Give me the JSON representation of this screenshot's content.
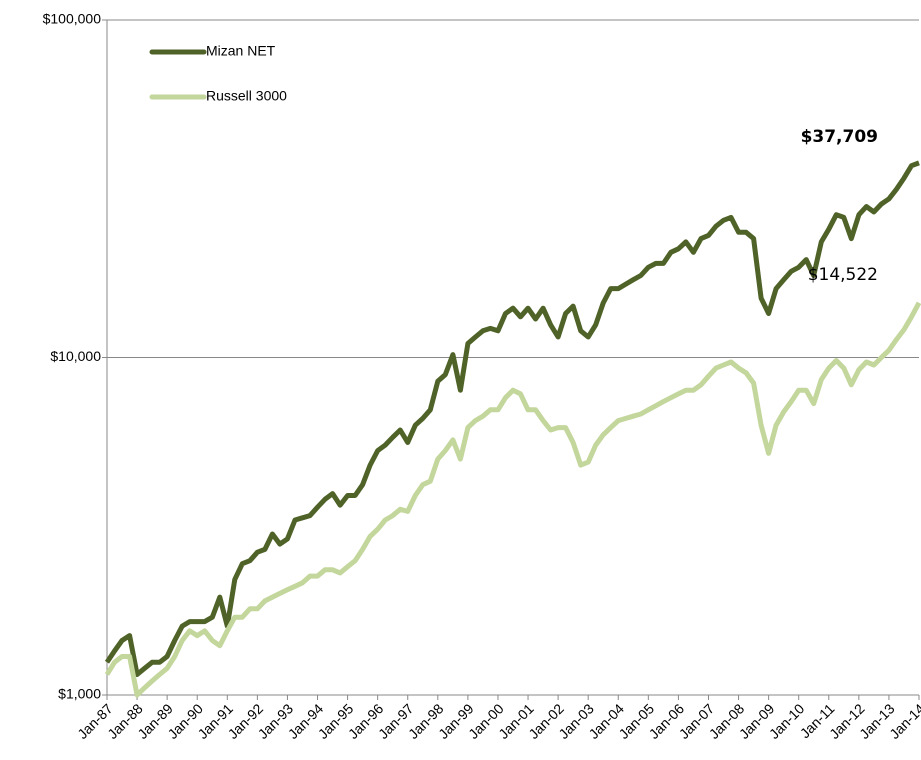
{
  "chart_data": {
    "type": "line",
    "log_scale": true,
    "categories": [
      "Jan-87",
      null,
      null,
      null,
      "Jan-88",
      null,
      null,
      null,
      "Jan-89",
      null,
      null,
      null,
      "Jan-90",
      null,
      null,
      null,
      "Jan-91",
      null,
      null,
      null,
      "Jan-92",
      null,
      null,
      null,
      "Jan-93",
      null,
      null,
      null,
      "Jan-94",
      null,
      null,
      null,
      "Jan-95",
      null,
      null,
      null,
      "Jan-96",
      null,
      null,
      null,
      "Jan-97",
      null,
      null,
      null,
      "Jan-98",
      null,
      null,
      null,
      "Jan-99",
      null,
      null,
      null,
      "Jan-00",
      null,
      null,
      null,
      "Jan-01",
      null,
      null,
      null,
      "Jan-02",
      null,
      null,
      null,
      "Jan-03",
      null,
      null,
      null,
      "Jan-04",
      null,
      null,
      null,
      "Jan-05",
      null,
      null,
      null,
      "Jan-06",
      null,
      null,
      null,
      "Jan-07",
      null,
      null,
      null,
      "Jan-08",
      null,
      null,
      null,
      "Jan-09",
      null,
      null,
      null,
      "Jan-10",
      null,
      null,
      null,
      "Jan-11",
      null,
      null,
      null,
      "Jan-12",
      null,
      null,
      null,
      "Jan-13",
      null,
      null,
      null,
      "Jan-14"
    ],
    "series": [
      {
        "name": "Mizan NET",
        "color": "#4f6228",
        "annotation": "$37,709",
        "annotation_color": "#4f6228",
        "values": [
          1250,
          1350,
          1450,
          1500,
          1150,
          1200,
          1250,
          1250,
          1300,
          1450,
          1600,
          1650,
          1650,
          1650,
          1700,
          1950,
          1600,
          2200,
          2450,
          2500,
          2650,
          2700,
          3000,
          2800,
          2900,
          3300,
          3350,
          3400,
          3600,
          3800,
          3950,
          3650,
          3900,
          3900,
          4200,
          4800,
          5300,
          5500,
          5800,
          6100,
          5600,
          6300,
          6600,
          7000,
          8500,
          8900,
          10200,
          8000,
          11000,
          11500,
          12000,
          12200,
          12000,
          13500,
          14000,
          13200,
          14000,
          13000,
          14000,
          12500,
          11500,
          13500,
          14200,
          12000,
          11500,
          12500,
          14500,
          16000,
          16000,
          16500,
          17000,
          17500,
          18500,
          19000,
          19000,
          20500,
          21000,
          22000,
          20500,
          22500,
          23000,
          24500,
          25500,
          26000,
          23500,
          23500,
          22500,
          15000,
          13500,
          16000,
          17000,
          18000,
          18500,
          19500,
          17500,
          22000,
          24000,
          26500,
          26000,
          22500,
          26500,
          28000,
          27000,
          28500,
          29500,
          31500,
          34000,
          37000,
          37709
        ]
      },
      {
        "name": "Russell 3000",
        "color": "#c3d69b",
        "annotation": "$14,522",
        "annotation_color": "#77933c",
        "values": [
          1150,
          1250,
          1300,
          1300,
          1000,
          1050,
          1100,
          1150,
          1200,
          1300,
          1450,
          1550,
          1500,
          1550,
          1450,
          1400,
          1550,
          1700,
          1700,
          1800,
          1800,
          1900,
          1950,
          2000,
          2050,
          2100,
          2150,
          2250,
          2250,
          2350,
          2350,
          2300,
          2400,
          2500,
          2700,
          2950,
          3100,
          3300,
          3400,
          3550,
          3500,
          3900,
          4200,
          4300,
          5000,
          5300,
          5700,
          5000,
          6200,
          6500,
          6700,
          7000,
          7000,
          7600,
          8000,
          7800,
          7000,
          7000,
          6500,
          6100,
          6200,
          6200,
          5600,
          4800,
          4900,
          5500,
          5900,
          6200,
          6500,
          6600,
          6700,
          6800,
          7000,
          7200,
          7400,
          7600,
          7800,
          8000,
          8000,
          8300,
          8800,
          9300,
          9500,
          9700,
          9300,
          9000,
          8400,
          6300,
          5200,
          6300,
          6900,
          7400,
          8000,
          8000,
          7300,
          8600,
          9300,
          9800,
          9300,
          8300,
          9200,
          9700,
          9500,
          10000,
          10500,
          11300,
          12100,
          13200,
          14522
        ]
      }
    ],
    "ylim": [
      1000,
      100000
    ],
    "yticks": [
      {
        "value": 1000,
        "label": "$1,000"
      },
      {
        "value": 10000,
        "label": "$10,000"
      },
      {
        "value": 100000,
        "label": "$100,000"
      }
    ],
    "grid": true,
    "legend": "top-left"
  }
}
